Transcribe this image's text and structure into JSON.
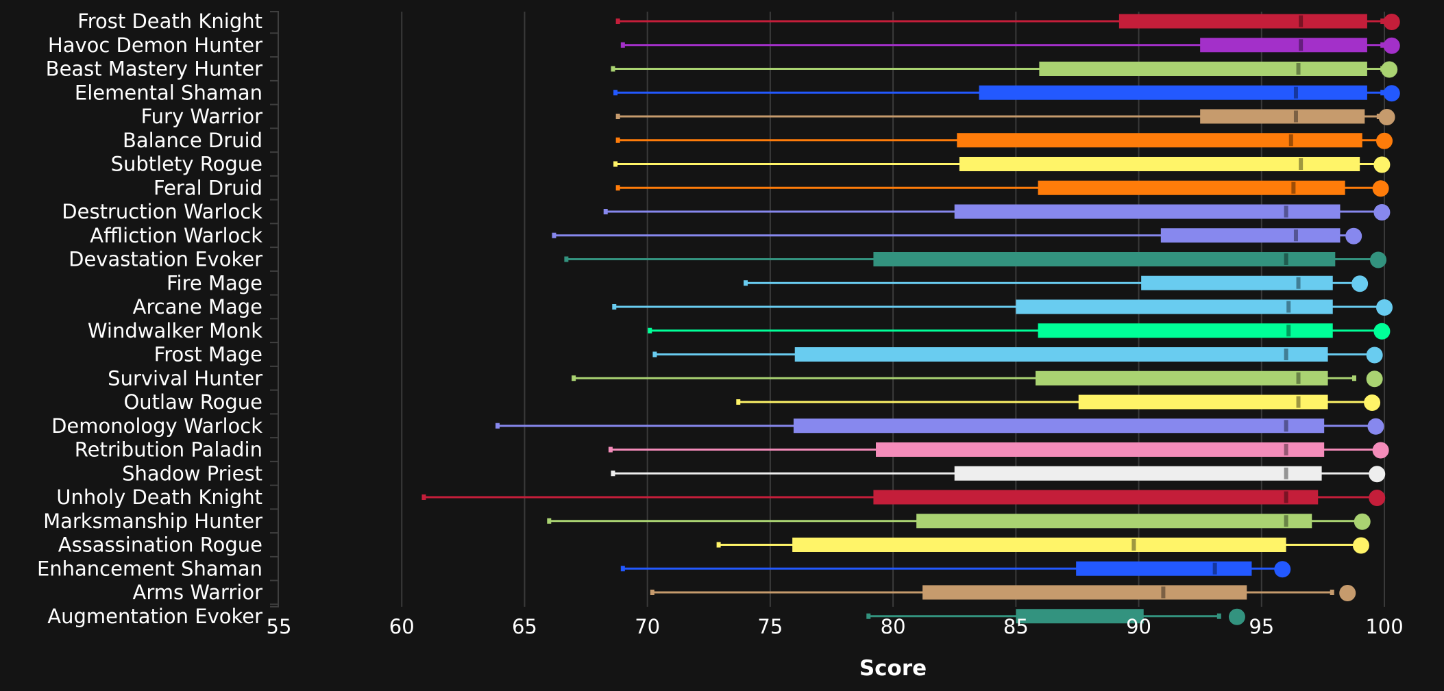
{
  "chart_data": {
    "type": "boxplot",
    "title": "",
    "xlabel": "Score",
    "ylabel": "",
    "xlim": [
      55,
      100
    ],
    "xticks": [
      "55",
      "60",
      "65",
      "70",
      "75",
      "80",
      "85",
      "90",
      "95",
      "100"
    ],
    "grid": "vertical",
    "legend": "none",
    "series_fields": [
      "min",
      "q1",
      "median",
      "q3",
      "max",
      "top_dot"
    ],
    "categories": [
      {
        "name": "Frost Death Knight",
        "color": "#C41E3A",
        "min": 68.8,
        "q1": 89.2,
        "median": 96.6,
        "q3": 99.3,
        "max": 99.95,
        "top_dot": 100.3
      },
      {
        "name": "Havoc Demon Hunter",
        "color": "#A330C9",
        "min": 69.0,
        "q1": 92.5,
        "median": 96.6,
        "q3": 99.3,
        "max": 99.95,
        "top_dot": 100.3
      },
      {
        "name": "Beast Mastery Hunter",
        "color": "#AAD372",
        "min": 68.6,
        "q1": 85.95,
        "median": 96.5,
        "q3": 99.3,
        "max": 99.95,
        "top_dot": 100.2
      },
      {
        "name": "Elemental Shaman",
        "color": "#2359FF",
        "min": 68.7,
        "q1": 83.5,
        "median": 96.4,
        "q3": 99.3,
        "max": 99.95,
        "top_dot": 100.3
      },
      {
        "name": "Fury Warrior",
        "color": "#C69B6D",
        "min": 68.8,
        "q1": 92.5,
        "median": 96.4,
        "q3": 99.2,
        "max": 99.8,
        "top_dot": 100.1
      },
      {
        "name": "Balance Druid",
        "color": "#FF7C0A",
        "min": 68.8,
        "q1": 82.6,
        "median": 96.2,
        "q3": 99.1,
        "max": 100.0,
        "top_dot": 100.0
      },
      {
        "name": "Subtlety Rogue",
        "color": "#FFF468",
        "min": 68.7,
        "q1": 82.7,
        "median": 96.6,
        "q3": 99.0,
        "max": 99.9,
        "top_dot": 99.9
      },
      {
        "name": "Feral Druid",
        "color": "#FF7C0A",
        "min": 68.8,
        "q1": 85.9,
        "median": 96.3,
        "q3": 98.4,
        "max": 99.85,
        "top_dot": 99.85
      },
      {
        "name": "Destruction Warlock",
        "color": "#8788EE",
        "min": 68.3,
        "q1": 82.5,
        "median": 96.0,
        "q3": 98.2,
        "max": 99.9,
        "top_dot": 99.9
      },
      {
        "name": "Affliction Warlock",
        "color": "#8788EE",
        "min": 66.2,
        "q1": 90.9,
        "median": 96.4,
        "q3": 98.2,
        "max": 98.75,
        "top_dot": 98.75
      },
      {
        "name": "Devastation Evoker",
        "color": "#33937F",
        "min": 66.7,
        "q1": 79.2,
        "median": 96.0,
        "q3": 98.0,
        "max": 99.75,
        "top_dot": 99.75
      },
      {
        "name": "Fire Mage",
        "color": "#69CCF0",
        "min": 74.0,
        "q1": 90.1,
        "median": 96.5,
        "q3": 97.9,
        "max": 99.0,
        "top_dot": 99.0
      },
      {
        "name": "Arcane Mage",
        "color": "#69CCF0",
        "min": 68.65,
        "q1": 85.0,
        "median": 96.1,
        "q3": 97.9,
        "max": 100.0,
        "top_dot": 100.0
      },
      {
        "name": "Windwalker Monk",
        "color": "#00FF98",
        "min": 70.1,
        "q1": 85.9,
        "median": 96.1,
        "q3": 97.9,
        "max": 99.9,
        "top_dot": 99.9
      },
      {
        "name": "Frost Mage",
        "color": "#69CCF0",
        "min": 70.3,
        "q1": 76.0,
        "median": 96.0,
        "q3": 97.7,
        "max": 99.6,
        "top_dot": 99.6
      },
      {
        "name": "Survival Hunter",
        "color": "#AAD372",
        "min": 67.0,
        "q1": 85.8,
        "median": 96.5,
        "q3": 97.7,
        "max": 98.8,
        "top_dot": 99.6
      },
      {
        "name": "Outlaw Rogue",
        "color": "#FFF468",
        "min": 73.7,
        "q1": 87.55,
        "median": 96.5,
        "q3": 97.7,
        "max": 99.5,
        "top_dot": 99.5
      },
      {
        "name": "Demonology Warlock",
        "color": "#8788EE",
        "min": 63.9,
        "q1": 75.95,
        "median": 96.0,
        "q3": 97.55,
        "max": 99.65,
        "top_dot": 99.65
      },
      {
        "name": "Retribution Paladin",
        "color": "#F48CBA",
        "min": 68.5,
        "q1": 79.3,
        "median": 96.0,
        "q3": 97.55,
        "max": 99.85,
        "top_dot": 99.85
      },
      {
        "name": "Shadow Priest",
        "color": "#EEEEEE",
        "min": 68.6,
        "q1": 82.5,
        "median": 96.0,
        "q3": 97.45,
        "max": 99.7,
        "top_dot": 99.7
      },
      {
        "name": "Unholy Death Knight",
        "color": "#C41E3A",
        "min": 60.9,
        "q1": 79.2,
        "median": 96.0,
        "q3": 97.3,
        "max": 99.7,
        "top_dot": 99.7
      },
      {
        "name": "Marksmanship Hunter",
        "color": "#AAD372",
        "min": 66.0,
        "q1": 80.95,
        "median": 96.0,
        "q3": 97.05,
        "max": 99.1,
        "top_dot": 99.1
      },
      {
        "name": "Assassination Rogue",
        "color": "#FFF468",
        "min": 72.9,
        "q1": 75.9,
        "median": 89.8,
        "q3": 96.0,
        "max": 99.05,
        "top_dot": 99.05
      },
      {
        "name": "Enhancement Shaman",
        "color": "#2359FF",
        "min": 69.0,
        "q1": 87.45,
        "median": 93.1,
        "q3": 94.6,
        "max": 95.85,
        "top_dot": 95.85
      },
      {
        "name": "Arms Warrior",
        "color": "#C69B6D",
        "min": 70.2,
        "q1": 81.2,
        "median": 91.0,
        "q3": 94.4,
        "max": 97.9,
        "top_dot": 98.5
      },
      {
        "name": "Augmentation Evoker",
        "color": "#33937F",
        "min": 79.0,
        "q1": 85.0,
        "median": 90.2,
        "q3": 90.2,
        "max": 93.3,
        "top_dot": 94.0
      }
    ]
  },
  "colors": {
    "background": "#141414",
    "grid": "#3a3a3a",
    "text": "#ffffff"
  }
}
